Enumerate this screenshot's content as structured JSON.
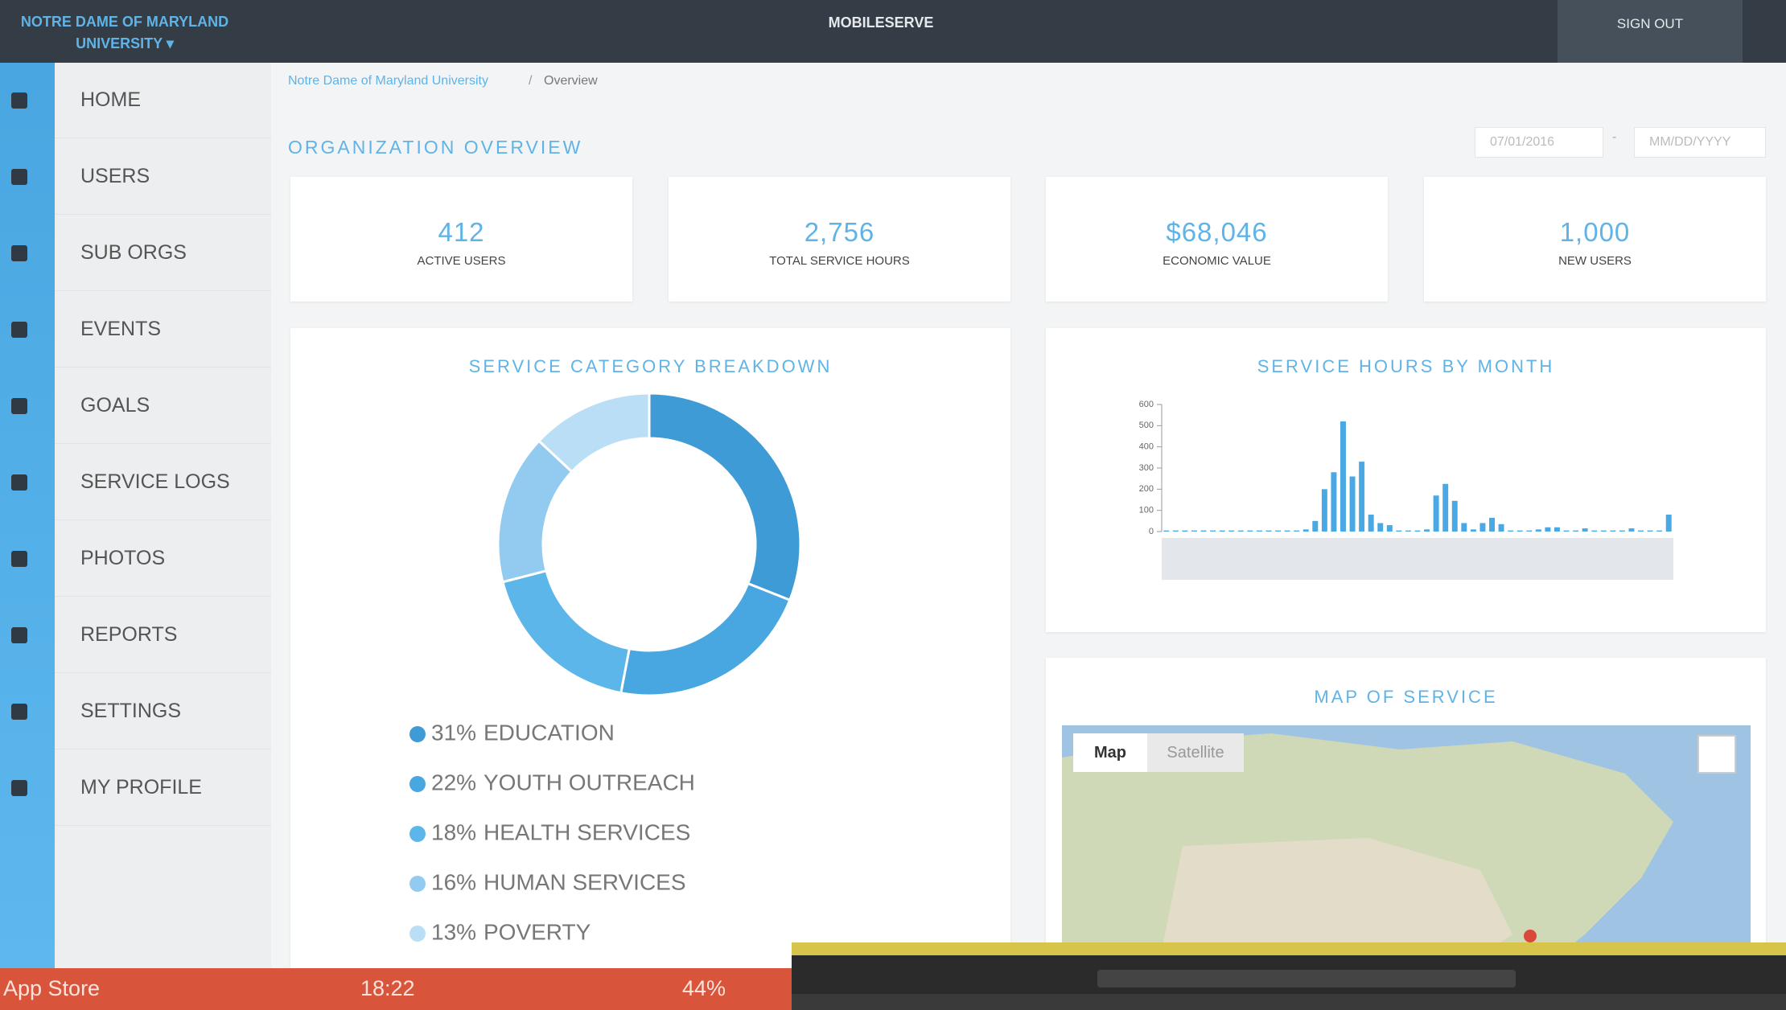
{
  "header": {
    "org": "NOTRE DAME OF MARYLAND UNIVERSITY ▾",
    "app": "MOBILESERVE",
    "sign_out": "SIGN OUT"
  },
  "nav": [
    "HOME",
    "USERS",
    "SUB ORGS",
    "EVENTS",
    "GOALS",
    "SERVICE LOGS",
    "PHOTOS",
    "REPORTS",
    "SETTINGS",
    "MY PROFILE"
  ],
  "breadcrumb": {
    "items": [
      "Notre Dame of Maryland University",
      "Overview"
    ],
    "separator": "/"
  },
  "page_title": "ORGANIZATION OVERVIEW",
  "date_range": {
    "start": "07/01/2016",
    "separator": "-",
    "end": "MM/DD/YYYY"
  },
  "stats": [
    {
      "value": "412",
      "label": "ACTIVE USERS"
    },
    {
      "value": "2,756",
      "label": "TOTAL SERVICE HOURS"
    },
    {
      "value": "$68,046",
      "label": "ECONOMIC VALUE"
    },
    {
      "value": "1,000",
      "label": "NEW USERS"
    }
  ],
  "chart_data": [
    {
      "type": "pie",
      "title": "SERVICE CATEGORY BREAKDOWN",
      "categories": [
        "EDUCATION",
        "YOUTH OUTREACH",
        "HEALTH SERVICES",
        "HUMAN SERVICES",
        "POVERTY"
      ],
      "values": [
        31,
        22,
        18,
        16,
        13
      ],
      "value_labels": [
        "31%",
        "22%",
        "18%",
        "16%",
        "13%"
      ],
      "colors": [
        "#3f9bd6",
        "#48a6e0",
        "#5cb6ea",
        "#93cbf0",
        "#b9def6"
      ]
    },
    {
      "type": "bar",
      "title": "SERVICE HOURS BY MONTH",
      "color": "#4aa8e4",
      "values": [
        5,
        5,
        5,
        5,
        5,
        5,
        5,
        5,
        5,
        5,
        5,
        5,
        5,
        5,
        5,
        10,
        50,
        200,
        280,
        520,
        260,
        330,
        80,
        40,
        30,
        5,
        5,
        5,
        10,
        170,
        225,
        145,
        40,
        10,
        40,
        65,
        35,
        5,
        5,
        5,
        10,
        20,
        20,
        5,
        5,
        15,
        5,
        5,
        5,
        5,
        15,
        5,
        5,
        5,
        80
      ],
      "ylim": [
        0,
        600
      ],
      "yticks": [
        0,
        100,
        200,
        300,
        400,
        500,
        600
      ]
    }
  ],
  "map": {
    "title": "MAP OF SERVICE",
    "buttons": [
      "Map",
      "Satellite"
    ]
  },
  "status_bar": {
    "left": "App Store",
    "time": "18:22",
    "battery": "44%"
  }
}
